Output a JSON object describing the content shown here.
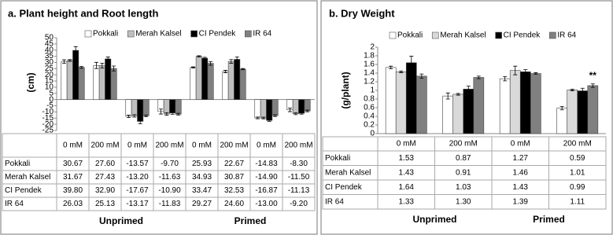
{
  "chart_data": [
    {
      "type": "bar",
      "title": "a. Plant height and Root length",
      "y_label": "(cm)",
      "categories": [
        "0 mM",
        "200 mM",
        "0 mM",
        "200 mM",
        "0 mM",
        "200 mM",
        "0 mM",
        "200 mM"
      ],
      "group_labels": [
        "Unprimed",
        "Primed"
      ],
      "ylim": [
        -25,
        50
      ],
      "yticks": [
        -25,
        -20,
        -15,
        -10,
        -5,
        0,
        5,
        10,
        15,
        20,
        25,
        30,
        35,
        40,
        45,
        50
      ],
      "series": [
        {
          "name": "Pokkali",
          "color": "#ffffff",
          "values": [
            30.67,
            27.6,
            -13.57,
            -9.7,
            25.93,
            22.67,
            -14.83,
            -8.3
          ],
          "value_labels": [
            "30.67",
            "27.60",
            "-13.57",
            "-9.70",
            "25.93",
            "22.67",
            "-14.83",
            "-8.30"
          ],
          "errors": [
            1.5,
            2.5,
            1,
            2,
            0.5,
            1,
            0.7,
            1.5
          ]
        },
        {
          "name": "Merah Kalsel",
          "color": "#bfbfbf",
          "values": [
            31.67,
            27.43,
            -13.2,
            -11.63,
            34.93,
            30.87,
            -14.9,
            -11.5
          ],
          "value_labels": [
            "31.67",
            "27.43",
            "-13.20",
            "-11.63",
            "34.93",
            "30.87",
            "-14.90",
            "-11.50"
          ],
          "errors": [
            0.7,
            2,
            1,
            1,
            0.5,
            1.5,
            0.7,
            0.7
          ]
        },
        {
          "name": "CI Pendek",
          "color": "#000000",
          "values": [
            39.8,
            32.9,
            -17.67,
            -10.9,
            33.47,
            32.53,
            -16.87,
            -11.13
          ],
          "value_labels": [
            "39.80",
            "32.90",
            "-17.67",
            "-10.90",
            "33.47",
            "32.53",
            "-16.87",
            "-11.13"
          ],
          "errors": [
            3,
            1.5,
            2,
            1,
            0.7,
            2,
            0.7,
            0.7
          ]
        },
        {
          "name": "IR 64",
          "color": "#808080",
          "values": [
            26.03,
            25.13,
            -13.17,
            -11.83,
            29.27,
            24.6,
            -13,
            -9.2
          ],
          "value_labels": [
            "26.03",
            "25.13",
            "-13.17",
            "-11.83",
            "29.27",
            "24.60",
            "-13.00",
            "-9.20"
          ],
          "errors": [
            0.7,
            2,
            0.7,
            0.7,
            1.5,
            0.5,
            0.7,
            0.7
          ]
        }
      ]
    },
    {
      "type": "bar",
      "title": "b. Dry Weight",
      "y_label": "(g/plant)",
      "categories": [
        "0 mM",
        "200 mM",
        "0 mM",
        "200 mM"
      ],
      "group_labels": [
        "Unprimed",
        "Primed"
      ],
      "ylim": [
        0,
        2
      ],
      "yticks": [
        0,
        0.2,
        0.4,
        0.6,
        0.8,
        1,
        1.2,
        1.4,
        1.6,
        1.8,
        2
      ],
      "annotation": "**",
      "series": [
        {
          "name": "Pokkali",
          "color": "#ffffff",
          "values": [
            1.53,
            0.87,
            1.27,
            0.59
          ],
          "value_labels": [
            "1.53",
            "0.87",
            "1.27",
            "0.59"
          ],
          "errors": [
            0.03,
            0.07,
            0.05,
            0.04
          ]
        },
        {
          "name": "Merah Kalsel",
          "color": "#d9d9d9",
          "values": [
            1.43,
            0.91,
            1.46,
            1.01
          ],
          "value_labels": [
            "1.43",
            "0.91",
            "1.46",
            "1.01"
          ],
          "errors": [
            0.02,
            0.02,
            0.1,
            0.02
          ]
        },
        {
          "name": "CI Pendek",
          "color": "#000000",
          "values": [
            1.64,
            1.03,
            1.43,
            0.99
          ],
          "value_labels": [
            "1.64",
            "1.03",
            "1.43",
            "0.99"
          ],
          "errors": [
            0.15,
            0.07,
            0.05,
            0.06
          ]
        },
        {
          "name": "IR 64",
          "color": "#808080",
          "values": [
            1.33,
            1.3,
            1.39,
            1.11
          ],
          "value_labels": [
            "1.33",
            "1.30",
            "1.39",
            "1.11"
          ],
          "errors": [
            0.05,
            0.03,
            0.02,
            0.04
          ]
        }
      ]
    }
  ]
}
